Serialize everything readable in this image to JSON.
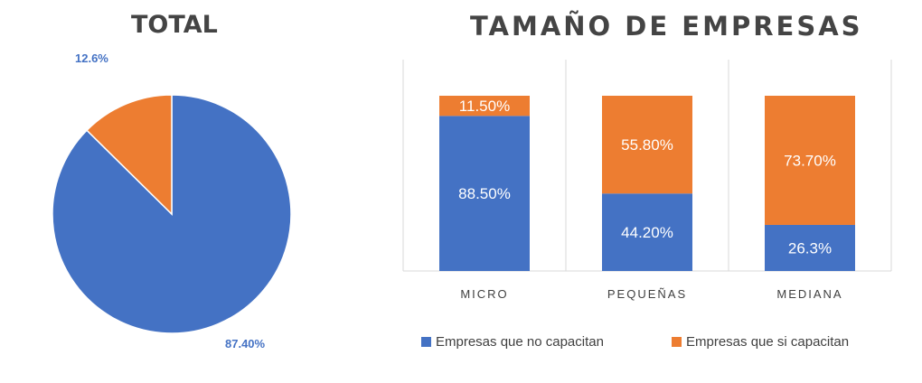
{
  "pie_title": "TOTAL",
  "bar_title": "TAMAÑO DE EMPRESAS",
  "colors": {
    "blue": "#4472c4",
    "orange": "#ed7d31"
  },
  "chart_data": [
    {
      "type": "pie",
      "title": "TOTAL",
      "slices": [
        {
          "label": "87.40%",
          "value": 87.4,
          "color": "#4472c4"
        },
        {
          "label": "12.6%",
          "value": 12.6,
          "color": "#ed7d31"
        }
      ]
    },
    {
      "type": "bar",
      "stacked": true,
      "percent_stacked": true,
      "title": "TAMAÑO DE EMPRESAS",
      "categories": [
        "MICRO",
        "PEQUEÑAS",
        "MEDIANA"
      ],
      "ylim": [
        0,
        100
      ],
      "grid": false,
      "legend": "bottom",
      "series": [
        {
          "name": "Empresas que no capacitan",
          "color": "#4472c4",
          "values": [
            88.5,
            44.2,
            26.3
          ],
          "labels": [
            "88.50%",
            "44.20%",
            "26.3%"
          ]
        },
        {
          "name": "Empresas que si capacitan",
          "color": "#ed7d31",
          "values": [
            11.5,
            55.8,
            73.7
          ],
          "labels": [
            "11.50%",
            "55.80%",
            "73.70%"
          ]
        }
      ]
    }
  ]
}
